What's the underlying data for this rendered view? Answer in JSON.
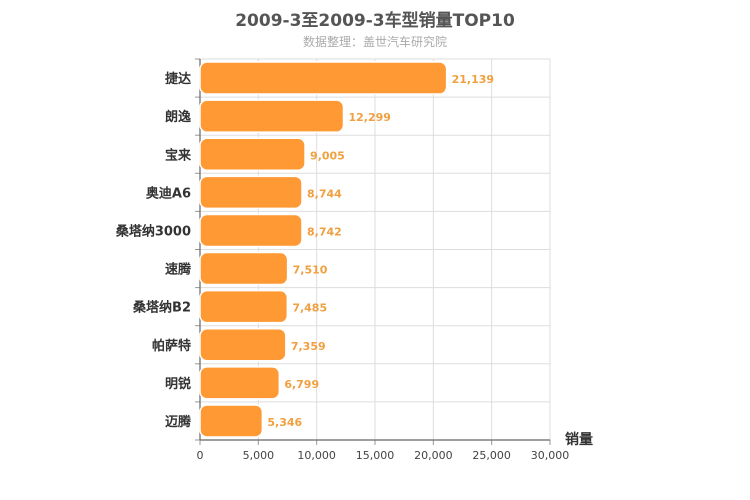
{
  "chart_data": {
    "type": "bar",
    "orientation": "horizontal",
    "title": "2009-3至2009-3车型销量TOP10",
    "subtitle": "数据整理：盖世汽车研究院",
    "categories": [
      "捷达",
      "朗逸",
      "宝来",
      "奥迪A6",
      "桑塔纳3000",
      "速腾",
      "桑塔纳B2",
      "帕萨特",
      "明锐",
      "迈腾"
    ],
    "values": [
      21139,
      12299,
      9005,
      8744,
      8742,
      7510,
      7485,
      7359,
      6799,
      5346
    ],
    "value_labels": [
      "21,139",
      "12,299",
      "9,005",
      "8,744",
      "8,742",
      "7,510",
      "7,485",
      "7,359",
      "6,799",
      "5,346"
    ],
    "xlabel": "销量",
    "xlim": [
      0,
      30000
    ],
    "xticks": [
      0,
      5000,
      10000,
      15000,
      20000,
      25000,
      30000
    ],
    "xtick_labels": [
      "0",
      "5,000",
      "10,000",
      "15,000",
      "20,000",
      "25,000",
      "30,000"
    ],
    "grid": true,
    "bar_color": "#ff9933",
    "value_label_color": "#f0a040"
  }
}
